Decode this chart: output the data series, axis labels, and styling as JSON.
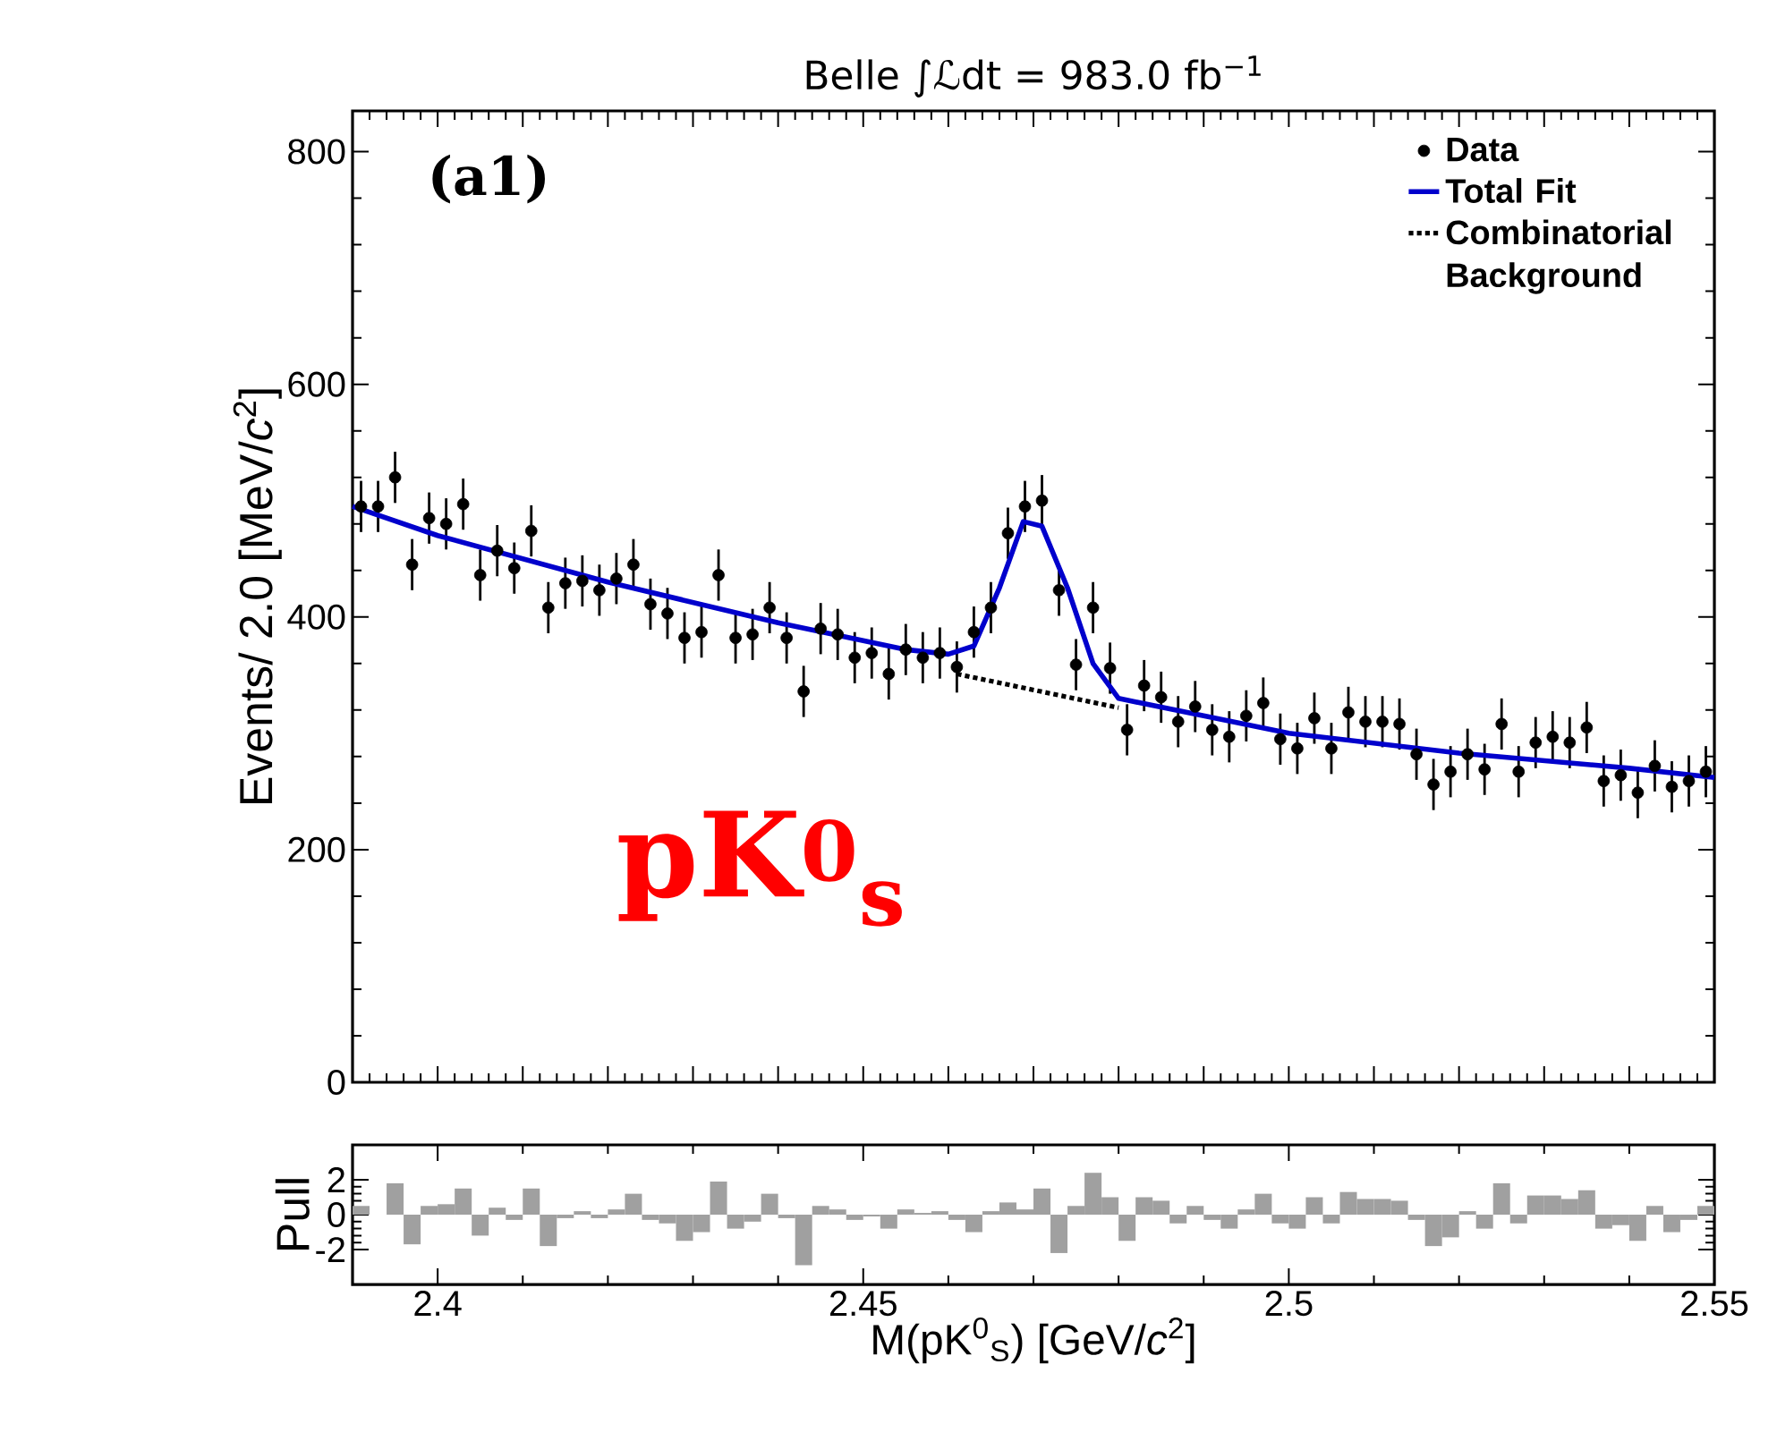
{
  "chart_data": [
    {
      "type": "scatter",
      "title": "Belle  ∫ℒdt = 983.0 fb$^{−1}$",
      "ylabel": "Events/ 2.0 [MeV/*c*$^{2}$]",
      "xlim": [
        2.39,
        2.55
      ],
      "ylim": [
        0,
        835
      ],
      "xticks": [
        2.4,
        2.45,
        2.5,
        2.55
      ],
      "yticks": [
        0,
        200,
        400,
        600,
        800
      ],
      "tick_labels": "y",
      "legend": "top right",
      "annotations": [
        "(a1)",
        "pK$^{0}$$_{s}$"
      ],
      "series": [
        {
          "name": "Data",
          "type": "scatter",
          "color": "#000000",
          "marker": "circle",
          "x": [
            2.391,
            2.393,
            2.395,
            2.397,
            2.399,
            2.401,
            2.403,
            2.405,
            2.407,
            2.409,
            2.411,
            2.413,
            2.415,
            2.417,
            2.419,
            2.421,
            2.423,
            2.425,
            2.427,
            2.429,
            2.431,
            2.433,
            2.435,
            2.437,
            2.439,
            2.441,
            2.443,
            2.445,
            2.447,
            2.449,
            2.451,
            2.453,
            2.455,
            2.457,
            2.459,
            2.461,
            2.463,
            2.465,
            2.467,
            2.469,
            2.471,
            2.473,
            2.475,
            2.477,
            2.479,
            2.481,
            2.483,
            2.485,
            2.487,
            2.489,
            2.491,
            2.493,
            2.495,
            2.497,
            2.499,
            2.501,
            2.503,
            2.505,
            2.507,
            2.509,
            2.511,
            2.513,
            2.515,
            2.517,
            2.519,
            2.521,
            2.523,
            2.525,
            2.527,
            2.529,
            2.531,
            2.533,
            2.535,
            2.537,
            2.539,
            2.541,
            2.543,
            2.545,
            2.547,
            2.549
          ],
          "values": [
            495,
            495,
            520,
            445,
            485,
            480,
            497,
            436,
            457,
            442,
            474,
            408,
            429,
            431,
            423,
            433,
            445,
            411,
            403,
            382,
            387,
            436,
            382,
            385,
            408,
            382,
            336,
            390,
            385,
            365,
            369,
            351,
            372,
            365,
            369,
            357,
            387,
            408,
            472,
            495,
            500,
            423,
            359,
            408,
            356,
            303,
            341,
            331,
            310,
            323,
            303,
            297,
            315,
            326,
            295,
            287,
            313,
            287,
            318,
            310,
            310,
            308,
            282,
            256,
            267,
            282,
            269,
            308,
            267,
            292,
            297,
            292,
            305,
            259,
            264,
            249,
            272,
            254,
            259,
            267
          ],
          "errors": [
            22,
            22,
            22,
            22,
            22,
            22,
            22,
            22,
            22,
            22,
            22,
            22,
            22,
            22,
            22,
            22,
            22,
            22,
            22,
            22,
            22,
            22,
            22,
            22,
            22,
            22,
            22,
            22,
            22,
            22,
            22,
            22,
            22,
            22,
            22,
            22,
            22,
            22,
            22,
            22,
            22,
            22,
            22,
            22,
            22,
            22,
            22,
            22,
            22,
            22,
            22,
            22,
            22,
            22,
            22,
            22,
            22,
            22,
            22,
            22,
            22,
            22,
            22,
            22,
            22,
            22,
            22,
            22,
            22,
            22,
            22,
            22,
            22,
            22,
            22,
            22,
            22,
            22,
            22,
            22
          ]
        },
        {
          "name": "Total Fit",
          "type": "line",
          "color": "#0000cc",
          "line_style": "solid",
          "x": [
            2.39,
            2.4,
            2.42,
            2.44,
            2.455,
            2.46,
            2.463,
            2.466,
            2.4688,
            2.471,
            2.474,
            2.477,
            2.48,
            2.49,
            2.5,
            2.52,
            2.54,
            2.55
          ],
          "values": [
            495,
            470,
            430,
            395,
            372,
            368,
            375,
            425,
            482,
            478,
            425,
            360,
            330,
            315,
            300,
            283,
            270,
            262
          ]
        },
        {
          "name": "Combinatorial Background",
          "type": "line",
          "color": "#000000",
          "line_style": "dotted",
          "x": [
            2.461,
            2.48
          ],
          "values": [
            351,
            322
          ]
        }
      ]
    },
    {
      "type": "histogram",
      "ylabel": "Pull",
      "xlabel": "M(pK$^{0}$$_{S}$) [GeV/*c*$^{2}$]",
      "color": "#a0a0a0",
      "xlim": [
        2.39,
        2.55
      ],
      "ylim": [
        -4,
        4
      ],
      "xticks": [
        2.4,
        2.45,
        2.5,
        2.55
      ],
      "yticks": [
        -2,
        0,
        2
      ],
      "bins": [
        2.39,
        2.392,
        2.394,
        2.396,
        2.398,
        2.4,
        2.402,
        2.404,
        2.406,
        2.408,
        2.41,
        2.412,
        2.414,
        2.416,
        2.418,
        2.42,
        2.422,
        2.424,
        2.426,
        2.428,
        2.43,
        2.432,
        2.434,
        2.436,
        2.438,
        2.44,
        2.442,
        2.444,
        2.446,
        2.448,
        2.45,
        2.452,
        2.454,
        2.456,
        2.458,
        2.46,
        2.462,
        2.464,
        2.466,
        2.468,
        2.47,
        2.472,
        2.474,
        2.476,
        2.478,
        2.48,
        2.482,
        2.484,
        2.486,
        2.488,
        2.49,
        2.492,
        2.494,
        2.496,
        2.498,
        2.5,
        2.502,
        2.504,
        2.506,
        2.508,
        2.51,
        2.512,
        2.514,
        2.516,
        2.518,
        2.52,
        2.522,
        2.524,
        2.526,
        2.528,
        2.53,
        2.532,
        2.534,
        2.536,
        2.538,
        2.54,
        2.542,
        2.544,
        2.546,
        2.548,
        2.55
      ],
      "values": [
        0.5,
        0,
        1.8,
        -1.7,
        0.5,
        0.6,
        1.5,
        -1.2,
        0.4,
        -0.3,
        1.5,
        -1.8,
        -0.2,
        0.2,
        -0.2,
        0.3,
        1.2,
        -0.3,
        -0.5,
        -1.5,
        -1.0,
        1.9,
        -0.8,
        -0.4,
        1.2,
        -0.2,
        -2.9,
        0.5,
        0.3,
        -0.3,
        -0.1,
        -0.8,
        0.3,
        0.1,
        0.2,
        -0.3,
        -1.0,
        0.2,
        0.7,
        0.3,
        1.5,
        -2.2,
        0.5,
        2.4,
        1.0,
        -1.5,
        1.0,
        0.8,
        -0.5,
        0.5,
        -0.3,
        -0.8,
        0.3,
        1.2,
        -0.5,
        -0.8,
        1.0,
        -0.5,
        1.3,
        0.9,
        0.9,
        0.8,
        -0.3,
        -1.8,
        -1.3,
        0.2,
        -0.8,
        1.8,
        -0.5,
        1.1,
        1.1,
        0.9,
        1.4,
        -0.8,
        -0.6,
        -1.5,
        0.5,
        -1.0,
        -0.3,
        0.5
      ]
    }
  ]
}
